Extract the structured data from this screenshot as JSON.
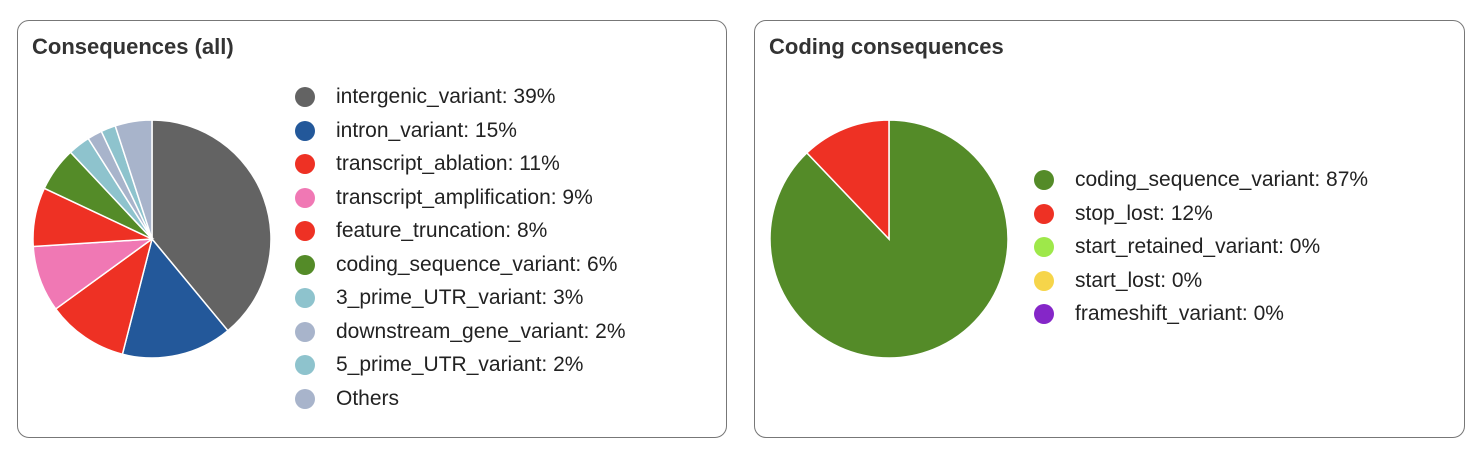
{
  "chart_data": [
    {
      "type": "pie",
      "title": "Consequences (all)",
      "legend_position": "right",
      "slices": [
        {
          "label": "intergenic_variant: 39%",
          "value": 39,
          "color": "#636363"
        },
        {
          "label": "intron_variant: 15%",
          "value": 15,
          "color": "#23589a"
        },
        {
          "label": "transcript_ablation: 11%",
          "value": 11,
          "color": "#ee3124"
        },
        {
          "label": "transcript_amplification: 9%",
          "value": 9,
          "color": "#f078b4"
        },
        {
          "label": "feature_truncation: 8%",
          "value": 8,
          "color": "#ee3124"
        },
        {
          "label": "coding_sequence_variant: 6%",
          "value": 6,
          "color": "#548b28"
        },
        {
          "label": "3_prime_UTR_variant: 3%",
          "value": 3,
          "color": "#8ec3cd"
        },
        {
          "label": "downstream_gene_variant: 2%",
          "value": 2,
          "color": "#a8b4cb"
        },
        {
          "label": "5_prime_UTR_variant: 2%",
          "value": 2,
          "color": "#8ec3cd"
        },
        {
          "label": "Others",
          "value": 5,
          "color": "#a8b4cb"
        }
      ]
    },
    {
      "type": "pie",
      "title": "Coding consequences",
      "legend_position": "right",
      "slices": [
        {
          "label": "coding_sequence_variant: 87%",
          "value": 87,
          "color": "#548b28"
        },
        {
          "label": "stop_lost: 12%",
          "value": 12,
          "color": "#ee3124"
        },
        {
          "label": "start_retained_variant: 0%",
          "value": 0,
          "color": "#9ee84a"
        },
        {
          "label": "start_lost: 0%",
          "value": 0,
          "color": "#f6d54a"
        },
        {
          "label": "frameshift_variant: 0%",
          "value": 0,
          "color": "#8526c8"
        }
      ]
    }
  ]
}
